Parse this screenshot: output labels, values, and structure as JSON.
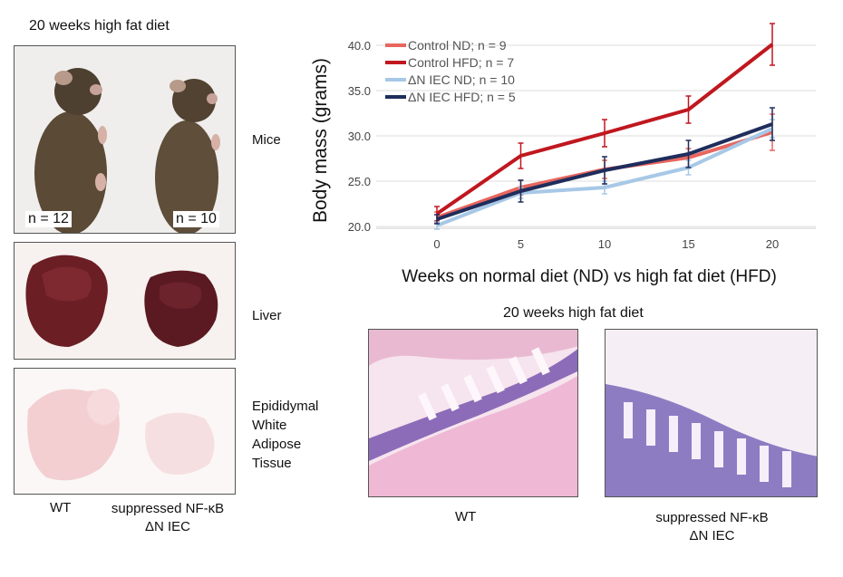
{
  "left": {
    "title": "20 weeks high fat diet",
    "mice_label": "Mice",
    "n_left": "n = 12",
    "n_right": "n = 10",
    "liver_label": "Liver",
    "adipose_label": [
      "Epididymal",
      "White",
      "Adipose",
      "Tissue"
    ],
    "group_wt": "WT",
    "group_ko_line1": "suppressed NF-κB",
    "group_ko_line2": "ΔN IEC"
  },
  "histology": {
    "title": "20 weeks high fat diet",
    "wt_label": "WT",
    "ko_line1": "suppressed NF-κB",
    "ko_line2": "ΔN IEC"
  },
  "colors": {
    "control_nd": "#e8665f",
    "control_hfd": "#c0171f",
    "dn_iec_nd": "#a7c8e6",
    "dn_iec_hfd": "#1f2d5c"
  },
  "chart_data": {
    "type": "line",
    "xlabel": "Weeks on normal diet (ND) vs high fat diet (HFD)",
    "ylabel": "Body mass (grams)",
    "x": [
      0,
      5,
      10,
      15,
      20
    ],
    "x_ticks": [
      "0",
      "5",
      "10",
      "15",
      "20"
    ],
    "y_ticks": [
      "20.0",
      "25.0",
      "30.0",
      "35.0",
      "40.0"
    ],
    "ylim": [
      20,
      41
    ],
    "grid": true,
    "legend_position": "top-left",
    "series": [
      {
        "name": "Control ND; n = 9",
        "color": "#e8665f",
        "values": [
          21.0,
          24.3,
          26.3,
          27.6,
          30.4
        ],
        "err": [
          0.6,
          0.8,
          1.0,
          1.0,
          2.0
        ]
      },
      {
        "name": "Control HFD; n = 7",
        "color": "#c0171f",
        "values": [
          21.4,
          27.8,
          30.3,
          32.9,
          40.1
        ],
        "err": [
          0.8,
          1.4,
          1.5,
          1.5,
          2.3
        ]
      },
      {
        "name": "ΔN IEC ND; n = 10",
        "color": "#a7c8e6",
        "values": [
          20.1,
          23.7,
          24.3,
          26.5,
          30.8
        ],
        "err": [
          0.4,
          0.6,
          0.7,
          0.8,
          1.0
        ]
      },
      {
        "name": "ΔN IEC HFD; n = 5",
        "color": "#1f2d5c",
        "values": [
          20.8,
          23.9,
          26.2,
          28.0,
          31.3
        ],
        "err": [
          0.5,
          1.2,
          1.5,
          1.5,
          1.8
        ]
      }
    ]
  }
}
